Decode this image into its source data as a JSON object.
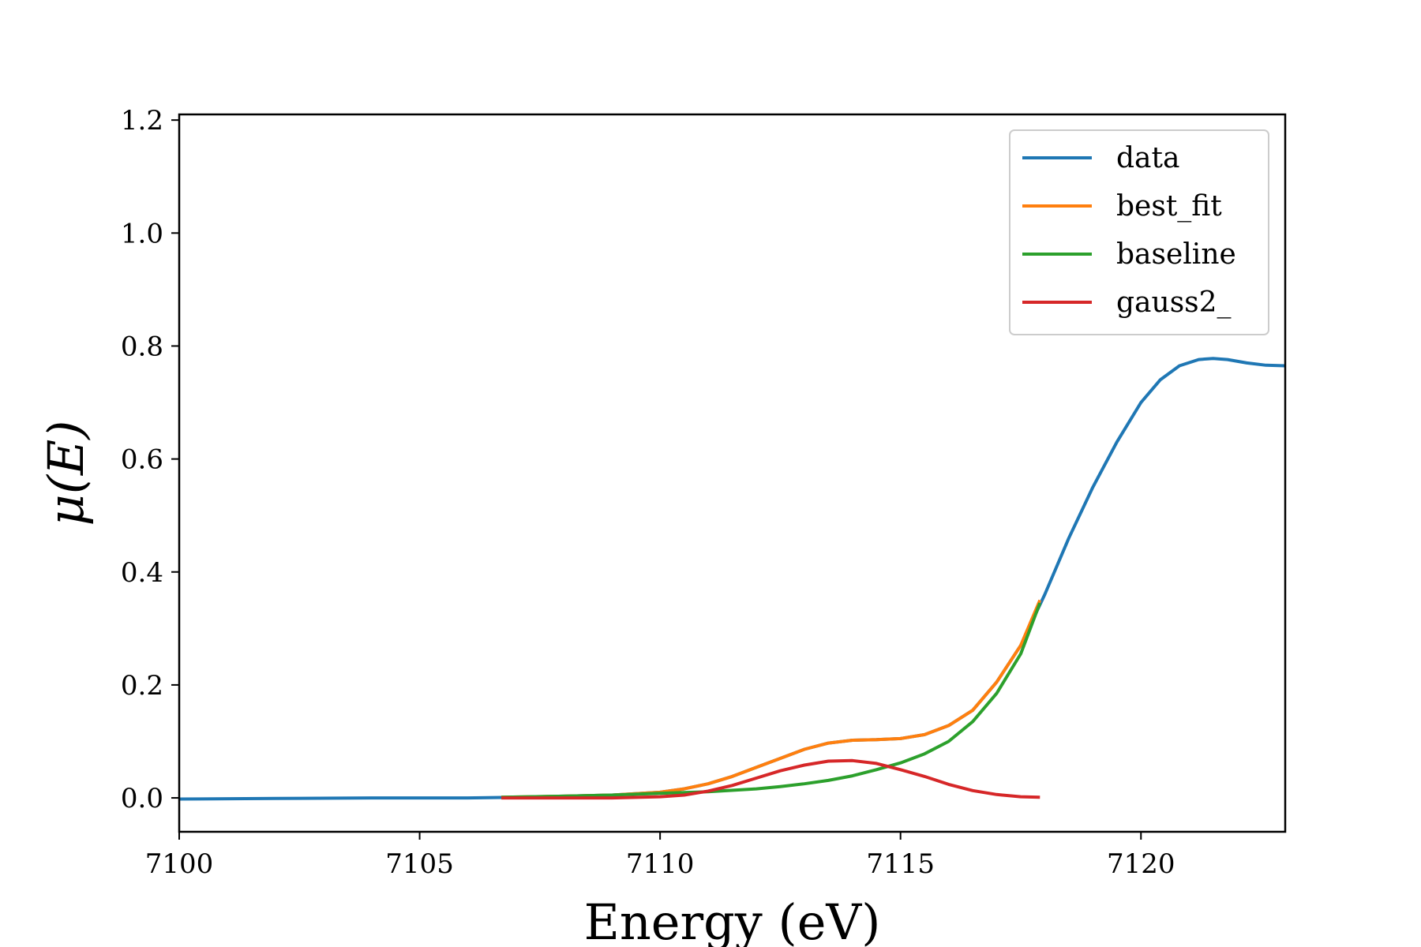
{
  "chart_data": {
    "type": "line",
    "xlabel": "Energy (eV)",
    "ylabel": "μ(E)",
    "xlim": [
      7100,
      7123
    ],
    "ylim": [
      -0.06,
      1.21
    ],
    "xticks": [
      7100,
      7105,
      7110,
      7115,
      7120
    ],
    "xtick_labels": [
      "7100",
      "7105",
      "7110",
      "7115",
      "7120"
    ],
    "yticks": [
      0.0,
      0.2,
      0.4,
      0.6,
      0.8,
      1.0,
      1.2
    ],
    "ytick_labels": [
      "0.0",
      "0.2",
      "0.4",
      "0.6",
      "0.8",
      "1.0",
      "1.2"
    ],
    "grid": false,
    "legend_position": "top-right",
    "series": [
      {
        "name": "data",
        "color": "#1f77b4",
        "x": [
          7100,
          7102,
          7104,
          7106,
          7107,
          7108,
          7109,
          7110,
          7110.5,
          7111,
          7111.5,
          7112,
          7112.5,
          7113,
          7113.5,
          7114,
          7114.5,
          7115,
          7115.5,
          7116,
          7116.5,
          7117,
          7117.5,
          7118,
          7118.5,
          7119,
          7119.5,
          7120,
          7120.4,
          7120.8,
          7121.2,
          7121.5,
          7121.8,
          7122.2,
          7122.6,
          7123
        ],
        "y": [
          -0.002,
          -0.001,
          0.0,
          0.0,
          0.001,
          0.003,
          0.005,
          0.01,
          0.016,
          0.025,
          0.038,
          0.054,
          0.07,
          0.086,
          0.097,
          0.102,
          0.103,
          0.105,
          0.112,
          0.128,
          0.155,
          0.205,
          0.27,
          0.36,
          0.46,
          0.55,
          0.63,
          0.7,
          0.74,
          0.765,
          0.776,
          0.778,
          0.776,
          0.77,
          0.766,
          0.765
        ]
      },
      {
        "name": "best_fit",
        "color": "#ff7f0e",
        "x": [
          7106.7,
          7108,
          7109,
          7110,
          7110.5,
          7111,
          7111.5,
          7112,
          7112.5,
          7113,
          7113.5,
          7114,
          7114.5,
          7115,
          7115.5,
          7116,
          7116.5,
          7117,
          7117.5,
          7117.9
        ],
        "y": [
          0.001,
          0.003,
          0.005,
          0.01,
          0.016,
          0.025,
          0.038,
          0.054,
          0.07,
          0.086,
          0.097,
          0.102,
          0.103,
          0.105,
          0.112,
          0.128,
          0.155,
          0.205,
          0.27,
          0.35
        ]
      },
      {
        "name": "baseline",
        "color": "#2ca02c",
        "x": [
          7106.7,
          7108,
          7109,
          7110,
          7111,
          7112,
          7112.5,
          7113,
          7113.5,
          7114,
          7114.5,
          7115,
          7115.5,
          7116,
          7116.5,
          7117,
          7117.5,
          7117.9
        ],
        "y": [
          0.001,
          0.003,
          0.005,
          0.008,
          0.011,
          0.016,
          0.02,
          0.025,
          0.031,
          0.039,
          0.05,
          0.062,
          0.078,
          0.1,
          0.135,
          0.185,
          0.255,
          0.345
        ]
      },
      {
        "name": "gauss2_",
        "color": "#d62728",
        "x": [
          7106.7,
          7108,
          7109,
          7110,
          7110.5,
          7111,
          7111.5,
          7112,
          7112.5,
          7113,
          7113.5,
          7114,
          7114.5,
          7115,
          7115.5,
          7116,
          7116.5,
          7117,
          7117.5,
          7117.9
        ],
        "y": [
          0.0,
          0.0,
          0.0,
          0.002,
          0.005,
          0.012,
          0.022,
          0.035,
          0.048,
          0.058,
          0.065,
          0.066,
          0.061,
          0.05,
          0.038,
          0.024,
          0.013,
          0.006,
          0.002,
          0.001
        ]
      }
    ]
  }
}
